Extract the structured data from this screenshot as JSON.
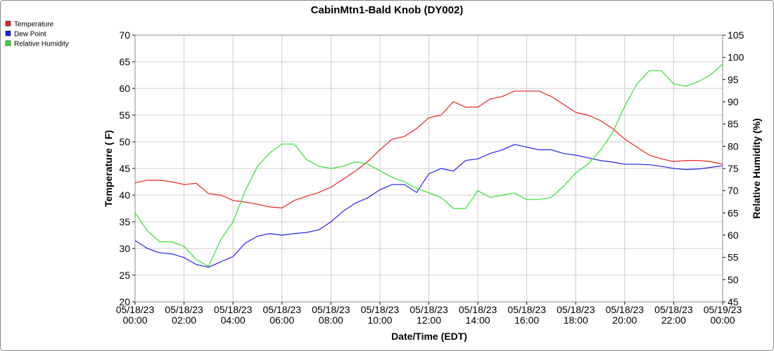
{
  "chart_data": {
    "type": "line",
    "title": "CabinMtn1-Bald Knob (DY002)",
    "x_label": "Date/Time (EDT)",
    "y_label": "Temperature ( F)",
    "y2_label": "Relative Humidity (%)",
    "legend": "top-left",
    "grid": true,
    "x": [
      "05/18/23 00:00",
      "05/18/23 00:30",
      "05/18/23 01:00",
      "05/18/23 01:30",
      "05/18/23 02:00",
      "05/18/23 02:30",
      "05/18/23 03:00",
      "05/18/23 03:30",
      "05/18/23 04:00",
      "05/18/23 04:30",
      "05/18/23 05:00",
      "05/18/23 05:30",
      "05/18/23 06:00",
      "05/18/23 06:30",
      "05/18/23 07:00",
      "05/18/23 07:30",
      "05/18/23 08:00",
      "05/18/23 08:30",
      "05/18/23 09:00",
      "05/18/23 09:30",
      "05/18/23 10:00",
      "05/18/23 10:30",
      "05/18/23 11:00",
      "05/18/23 11:30",
      "05/18/23 12:00",
      "05/18/23 12:30",
      "05/18/23 13:00",
      "05/18/23 13:30",
      "05/18/23 14:00",
      "05/18/23 14:30",
      "05/18/23 15:00",
      "05/18/23 15:30",
      "05/18/23 16:00",
      "05/18/23 16:30",
      "05/18/23 17:00",
      "05/18/23 17:30",
      "05/18/23 18:00",
      "05/18/23 18:30",
      "05/18/23 19:00",
      "05/18/23 19:30",
      "05/18/23 20:00",
      "05/18/23 20:30",
      "05/18/23 21:00",
      "05/18/23 21:30",
      "05/18/23 22:00",
      "05/18/23 22:30",
      "05/18/23 23:00",
      "05/18/23 23:30",
      "05/19/23 00:00"
    ],
    "xlim": [
      "05/18/23 00:00",
      "05/19/23 00:00"
    ],
    "xticks": [
      {
        "date": "05/18/23",
        "time": "00:00"
      },
      {
        "date": "05/18/23",
        "time": "02:00"
      },
      {
        "date": "05/18/23",
        "time": "04:00"
      },
      {
        "date": "05/18/23",
        "time": "06:00"
      },
      {
        "date": "05/18/23",
        "time": "08:00"
      },
      {
        "date": "05/18/23",
        "time": "10:00"
      },
      {
        "date": "05/18/23",
        "time": "12:00"
      },
      {
        "date": "05/18/23",
        "time": "14:00"
      },
      {
        "date": "05/18/23",
        "time": "16:00"
      },
      {
        "date": "05/18/23",
        "time": "18:00"
      },
      {
        "date": "05/18/23",
        "time": "20:00"
      },
      {
        "date": "05/18/23",
        "time": "22:00"
      },
      {
        "date": "05/19/23",
        "time": "00:00"
      }
    ],
    "ylim": [
      20,
      70
    ],
    "yticks": [
      20,
      25,
      30,
      35,
      40,
      45,
      50,
      55,
      60,
      65,
      70
    ],
    "y2lim": [
      45,
      105
    ],
    "y2ticks": [
      45,
      50,
      55,
      60,
      65,
      70,
      75,
      80,
      85,
      90,
      95,
      100,
      105
    ],
    "series": [
      {
        "name": "Temperature",
        "color": "#ee2222",
        "values": [
          42.3,
          42.8,
          42.8,
          42.5,
          42,
          42.2,
          40.3,
          40,
          39,
          38.7,
          38.3,
          37.8,
          37.6,
          39,
          39.8,
          40.5,
          41.5,
          43,
          44.5,
          46.3,
          48.5,
          50.5,
          51,
          52.5,
          54.5,
          55,
          57.5,
          56.5,
          56.5,
          58,
          58.5,
          59.5,
          59.5,
          59.5,
          58.5,
          57,
          55.5,
          55,
          54,
          52.5,
          50.5,
          49,
          47.5,
          46.8,
          46.3,
          46.5,
          46.5,
          46.3,
          45.8
        ]
      },
      {
        "name": "Dew Point",
        "color": "#2222ee",
        "values": [
          31.5,
          30,
          29.2,
          29,
          28.3,
          27,
          26.5,
          27.5,
          28.5,
          31,
          32.3,
          32.8,
          32.5,
          32.8,
          33,
          33.5,
          35,
          37,
          38.5,
          39.5,
          41,
          42,
          42,
          40.5,
          44,
          45,
          44.5,
          46.5,
          46.8,
          47.8,
          48.5,
          49.5,
          49,
          48.5,
          48.5,
          47.8,
          47.5,
          47,
          46.5,
          46.2,
          45.8,
          45.8,
          45.7,
          45.4,
          45,
          44.8,
          44.9,
          45.2,
          45.5
        ]
      },
      {
        "name": "Relative Humidity",
        "color": "#33e033",
        "axis": "y2",
        "values": [
          65,
          61,
          58.5,
          58.5,
          57.5,
          54.5,
          53,
          59,
          63,
          70,
          75.5,
          78.5,
          80.5,
          80.5,
          77,
          75.5,
          75,
          75.5,
          76.5,
          76,
          74.5,
          73,
          72,
          70.5,
          69.5,
          68.5,
          66,
          66,
          70,
          68.5,
          69,
          69.5,
          68,
          68,
          68.5,
          71,
          74,
          76,
          79,
          83,
          89,
          94,
          97,
          97,
          94,
          93.5,
          94.5,
          96,
          98.5
        ]
      }
    ]
  }
}
